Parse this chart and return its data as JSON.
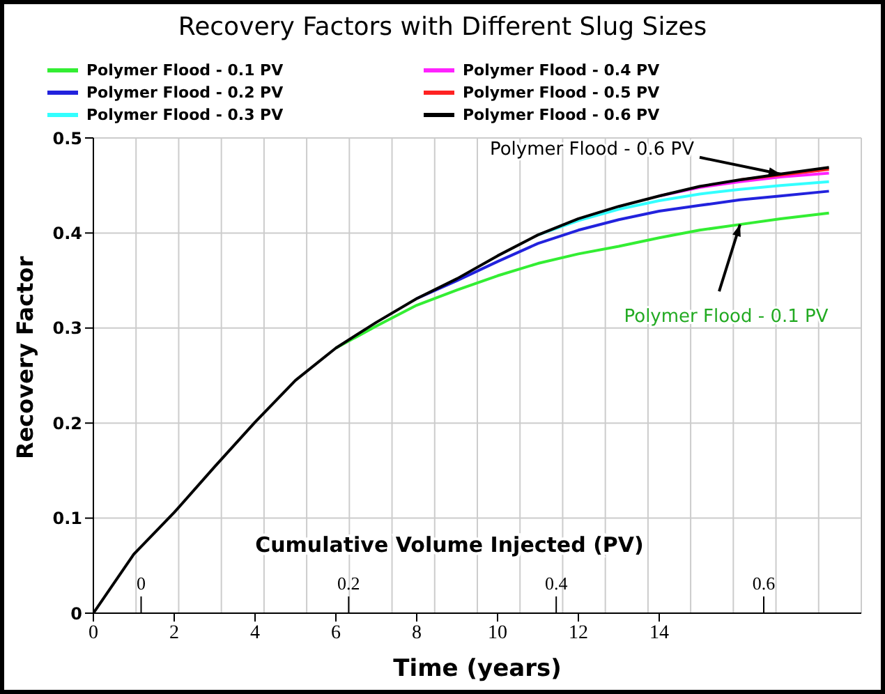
{
  "chart_data": {
    "type": "line",
    "title": "Recovery Factors with Different Slug Sizes",
    "xlabel": "Time (years)",
    "ylabel": "Recovery Factor",
    "x2label": "Cumulative Volume Injected (PV)",
    "x": [
      0,
      1,
      2,
      3,
      4,
      5,
      6,
      7,
      8,
      9,
      10,
      11,
      12,
      13,
      14,
      15,
      16,
      17,
      18.2
    ],
    "xlim": [
      0,
      19
    ],
    "xticks": [
      0,
      2,
      4,
      6,
      8,
      10,
      12,
      14
    ],
    "x2lim": [
      -0.046,
      0.694
    ],
    "x2ticks": [
      0,
      0.2,
      0.4,
      0.6
    ],
    "ylim": [
      0,
      0.5
    ],
    "yticks": [
      0,
      0.1,
      0.2,
      0.3,
      0.4,
      0.5
    ],
    "grid": true,
    "legend": "top",
    "line_style": "solid",
    "marker": "none",
    "series": [
      {
        "name": "Polymer Flood - 0.1 PV",
        "color": "#33ee33",
        "values": [
          null,
          null,
          null,
          null,
          null,
          null,
          0.279,
          0.302,
          0.324,
          0.34,
          0.355,
          0.368,
          0.378,
          0.386,
          0.395,
          0.403,
          0.409,
          0.415,
          0.421
        ]
      },
      {
        "name": "Polymer Flood - 0.2 PV",
        "color": "#2222dd",
        "values": [
          null,
          null,
          null,
          null,
          null,
          null,
          null,
          null,
          0.331,
          0.35,
          0.37,
          0.389,
          0.403,
          0.414,
          0.423,
          0.429,
          0.435,
          0.439,
          0.444
        ]
      },
      {
        "name": "Polymer Flood - 0.3 PV",
        "color": "#33ffff",
        "values": [
          null,
          null,
          null,
          null,
          null,
          null,
          null,
          null,
          null,
          null,
          null,
          0.398,
          0.413,
          0.425,
          0.434,
          0.441,
          0.446,
          0.45,
          0.454
        ]
      },
      {
        "name": "Polymer Flood - 0.4 PV",
        "color": "#ff22ff",
        "values": [
          null,
          null,
          null,
          null,
          null,
          null,
          null,
          null,
          null,
          null,
          null,
          null,
          null,
          null,
          0.439,
          0.448,
          0.454,
          0.459,
          0.463
        ]
      },
      {
        "name": "Polymer Flood - 0.5 PV",
        "color": "#ff2222",
        "values": [
          null,
          null,
          null,
          null,
          null,
          null,
          null,
          null,
          null,
          null,
          null,
          null,
          null,
          null,
          null,
          null,
          0.456,
          0.461,
          0.467
        ]
      },
      {
        "name": "Polymer Flood - 0.6 PV",
        "color": "#000000",
        "values": [
          0,
          0.062,
          0.106,
          0.154,
          0.201,
          0.245,
          0.279,
          0.306,
          0.331,
          0.352,
          0.376,
          0.398,
          0.415,
          0.428,
          0.439,
          0.449,
          0.456,
          0.462,
          0.469
        ]
      }
    ],
    "annotations": [
      {
        "text": "Polymer Flood - 0.6 PV",
        "x": 17,
        "y": 0.462
      },
      {
        "text": "Polymer Flood - 0.1 PV",
        "x": 16,
        "y": 0.409
      }
    ]
  }
}
